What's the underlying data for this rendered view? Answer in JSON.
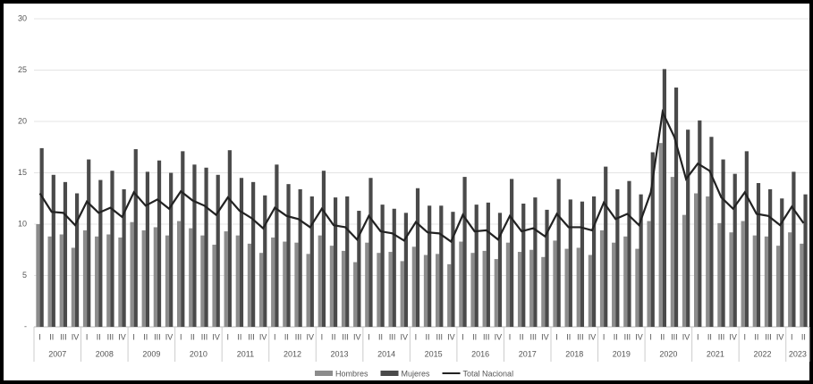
{
  "chart_data": {
    "type": "bar",
    "categories": [
      "I",
      "II",
      "III",
      "IV",
      "I",
      "II",
      "III",
      "IV",
      "I",
      "II",
      "III",
      "IV",
      "I",
      "II",
      "III",
      "IV",
      "I",
      "II",
      "III",
      "IV",
      "I",
      "II",
      "III",
      "IV",
      "I",
      "II",
      "III",
      "IV",
      "I",
      "II",
      "III",
      "IV",
      "I",
      "II",
      "III",
      "IV",
      "I",
      "II",
      "III",
      "IV",
      "I",
      "II",
      "III",
      "IV",
      "I",
      "II",
      "III",
      "IV",
      "I",
      "II",
      "III",
      "IV",
      "I",
      "II",
      "III",
      "IV",
      "I",
      "II",
      "III",
      "IV",
      "I",
      "II",
      "III",
      "IV",
      "I",
      "II"
    ],
    "years": [
      "2007",
      "2008",
      "2009",
      "2010",
      "2011",
      "2012",
      "2013",
      "2014",
      "2015",
      "2016",
      "2017",
      "2018",
      "2019",
      "2020",
      "2021",
      "2022",
      "2023"
    ],
    "series": [
      {
        "name": "Hombres",
        "type": "bar",
        "color": "#8c8c8c",
        "values": [
          10,
          8.8,
          9,
          7.7,
          9.4,
          8.8,
          9,
          8.7,
          10.2,
          9.4,
          9.7,
          8.9,
          10.3,
          9.6,
          8.9,
          8,
          9.3,
          8.9,
          8.1,
          7.2,
          8.7,
          8.3,
          8.2,
          7.1,
          8.9,
          7.9,
          7.4,
          6.3,
          8.2,
          7.2,
          7.3,
          6.4,
          7.8,
          7,
          7.1,
          6.1,
          8.3,
          7.2,
          7.4,
          6.6,
          8.2,
          7.3,
          7.5,
          6.8,
          8.4,
          7.6,
          7.7,
          7,
          9.4,
          8.2,
          8.8,
          7.6,
          10.3,
          17.9,
          14.6,
          10.9,
          13,
          12.7,
          10.1,
          9.2,
          10.3,
          8.9,
          8.8,
          7.9,
          9.2,
          8.1
        ]
      },
      {
        "name": "Mujeres",
        "type": "bar",
        "color": "#4a4a4a",
        "values": [
          17.4,
          14.8,
          14.1,
          13,
          16.3,
          14.3,
          15.2,
          13.4,
          17.3,
          15.1,
          16.2,
          15,
          17.1,
          15.8,
          15.5,
          14.8,
          17.2,
          14.5,
          14.1,
          12.8,
          15.8,
          13.9,
          13.4,
          12.7,
          15.2,
          12.6,
          12.7,
          11.3,
          14.5,
          11.9,
          11.5,
          11.1,
          13.5,
          11.8,
          11.8,
          11.2,
          14.6,
          11.9,
          12.1,
          11.1,
          14.4,
          12,
          12.6,
          11.4,
          14.4,
          12.4,
          12.2,
          12.7,
          15.6,
          13.4,
          14.2,
          12.9,
          17,
          25.1,
          23.3,
          19.2,
          20.1,
          18.5,
          16.3,
          14.9,
          17.1,
          14,
          13.4,
          12.5,
          15.1,
          12.9
        ]
      },
      {
        "name": "Total Nacional",
        "type": "line",
        "color": "#222222",
        "values": [
          13,
          11.2,
          11.1,
          9.9,
          12.2,
          11.1,
          11.6,
          10.7,
          13.1,
          11.8,
          12.4,
          11.5,
          13.2,
          12.3,
          11.8,
          10.9,
          12.6,
          11.3,
          10.6,
          9.6,
          11.6,
          10.8,
          10.5,
          9.7,
          11.5,
          9.9,
          9.7,
          8.5,
          10.8,
          9.3,
          9.1,
          8.4,
          10.2,
          9.2,
          9.1,
          8.3,
          10.9,
          9.3,
          9.4,
          8.5,
          10.8,
          9.3,
          9.6,
          8.8,
          11,
          9.7,
          9.7,
          9.4,
          12.1,
          10.5,
          11,
          9.9,
          13.1,
          20.9,
          18.5,
          14.4,
          15.9,
          15.2,
          12.6,
          11.5,
          13.1,
          11,
          10.8,
          9.9,
          11.7,
          10.1
        ]
      }
    ],
    "ylim": [
      0,
      30
    ],
    "yticks": [
      {
        "value": 0,
        "label": "-"
      },
      5,
      10,
      15,
      20,
      25,
      30
    ],
    "grid": true
  }
}
